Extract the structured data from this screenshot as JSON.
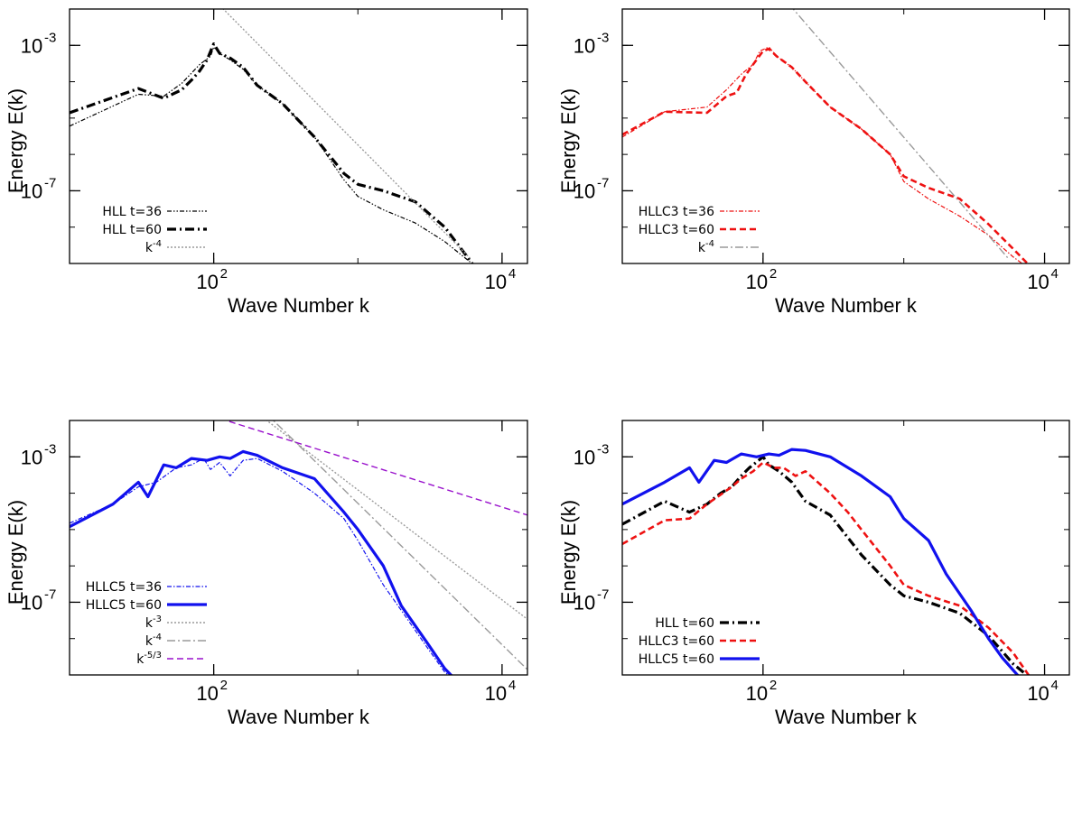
{
  "chart_data": [
    {
      "type": "line",
      "xscale": "log",
      "yscale": "log",
      "xlim": [
        10,
        15000
      ],
      "ylim": [
        1e-09,
        0.01
      ],
      "xlabel": "Wave Number k",
      "ylabel": "Energy E(k)",
      "xticks": [
        {
          "value": 100,
          "label": "10",
          "exp": "2"
        },
        {
          "value": 10000,
          "label": "10",
          "exp": "4"
        }
      ],
      "yticks": [
        {
          "value": 0.001,
          "label": "10",
          "exp": "-3"
        },
        {
          "value": 1e-07,
          "label": "10",
          "exp": "-7"
        }
      ],
      "legend_position": "bottom-left",
      "series": [
        {
          "name": "HLL t=36",
          "color": "#000000",
          "width": 1.2,
          "dash": "5,2,1.5,2,1.5,2",
          "points": [
            [
              10,
              6e-06
            ],
            [
              30,
              4.5e-05
            ],
            [
              45,
              4e-05
            ],
            [
              60,
              9e-05
            ],
            [
              80,
              0.0003
            ],
            [
              95,
              0.0005
            ],
            [
              100,
              0.0009
            ],
            [
              110,
              0.0006
            ],
            [
              130,
              0.0004
            ],
            [
              160,
              0.00022
            ],
            [
              200,
              8e-05
            ],
            [
              300,
              2.5e-05
            ],
            [
              500,
              3e-06
            ],
            [
              800,
              2e-07
            ],
            [
              1000,
              7e-08
            ],
            [
              1500,
              3e-08
            ],
            [
              2500,
              1.3e-08
            ],
            [
              4000,
              4e-09
            ],
            [
              6000,
              1.1e-09
            ]
          ]
        },
        {
          "name": "HLL t=60",
          "color": "#000000",
          "width": 3.2,
          "dash": "10,4,2,4",
          "points": [
            [
              10,
              1.4e-05
            ],
            [
              30,
              6.5e-05
            ],
            [
              45,
              3.5e-05
            ],
            [
              60,
              6e-05
            ],
            [
              70,
              0.00011
            ],
            [
              80,
              0.0002
            ],
            [
              90,
              0.0004
            ],
            [
              100,
              0.0011
            ],
            [
              110,
              0.0006
            ],
            [
              130,
              0.00045
            ],
            [
              160,
              0.00025
            ],
            [
              200,
              8e-05
            ],
            [
              300,
              2.5e-05
            ],
            [
              500,
              3e-06
            ],
            [
              800,
              3e-07
            ],
            [
              1000,
              1.5e-07
            ],
            [
              1500,
              1e-07
            ],
            [
              2500,
              5e-08
            ],
            [
              4000,
              1e-08
            ],
            [
              6000,
              1.2e-09
            ],
            [
              7000,
              5e-10
            ]
          ]
        },
        {
          "name": "k",
          "sup": "-4",
          "color": "#9a9a9a",
          "width": 1.4,
          "dash": "2,2",
          "points": [
            [
              80,
              0.045
            ],
            [
              6000,
              1.4e-09
            ]
          ]
        }
      ]
    },
    {
      "type": "line",
      "xscale": "log",
      "yscale": "log",
      "xlim": [
        10,
        15000
      ],
      "ylim": [
        1e-09,
        0.01
      ],
      "xlabel": "Wave Number k",
      "ylabel": "Energy E(k)",
      "xticks": [
        {
          "value": 100,
          "label": "10",
          "exp": "2"
        },
        {
          "value": 10000,
          "label": "10",
          "exp": "4"
        }
      ],
      "yticks": [
        {
          "value": 0.001,
          "label": "10",
          "exp": "-3"
        },
        {
          "value": 1e-07,
          "label": "10",
          "exp": "-7"
        }
      ],
      "legend_position": "bottom-left",
      "series": [
        {
          "name": "HLLC3 t=36",
          "color": "#ee1111",
          "width": 1.2,
          "dash": "5,2,1.5,2",
          "points": [
            [
              10,
              3e-06
            ],
            [
              20,
              1.5e-05
            ],
            [
              40,
              2e-05
            ],
            [
              55,
              6e-05
            ],
            [
              70,
              0.00016
            ],
            [
              85,
              0.0003
            ],
            [
              95,
              0.0007
            ],
            [
              110,
              0.0009
            ],
            [
              125,
              0.0005
            ],
            [
              160,
              0.00025
            ],
            [
              200,
              0.0001
            ],
            [
              300,
              2e-05
            ],
            [
              500,
              5e-06
            ],
            [
              800,
              1e-06
            ],
            [
              1000,
              1.8e-07
            ],
            [
              1500,
              6e-08
            ],
            [
              2500,
              2e-08
            ],
            [
              4000,
              6e-09
            ],
            [
              6000,
              1.5e-09
            ],
            [
              7500,
              8e-10
            ]
          ]
        },
        {
          "name": "HLLC3 t=60",
          "color": "#ee1111",
          "width": 2.6,
          "dash": "7,4",
          "points": [
            [
              10,
              3.5e-06
            ],
            [
              20,
              1.5e-05
            ],
            [
              40,
              1.4e-05
            ],
            [
              55,
              4e-05
            ],
            [
              65,
              5e-05
            ],
            [
              75,
              0.00015
            ],
            [
              85,
              0.0003
            ],
            [
              100,
              0.0007
            ],
            [
              110,
              0.0008
            ],
            [
              125,
              0.0005
            ],
            [
              160,
              0.00025
            ],
            [
              200,
              0.0001
            ],
            [
              300,
              2e-05
            ],
            [
              500,
              5e-06
            ],
            [
              800,
              1e-06
            ],
            [
              1000,
              2.5e-07
            ],
            [
              1500,
              1.2e-07
            ],
            [
              2500,
              6e-08
            ],
            [
              4000,
              1.2e-08
            ],
            [
              6000,
              2.5e-09
            ],
            [
              8000,
              8e-10
            ]
          ]
        },
        {
          "name": "k",
          "sup": "-4",
          "color": "#9a9a9a",
          "width": 1.4,
          "dash": "9,3,2,3",
          "points": [
            [
              110,
              0.06
            ],
            [
              5500,
              1.4e-09
            ]
          ]
        }
      ]
    },
    {
      "type": "line",
      "xscale": "log",
      "yscale": "log",
      "xlim": [
        10,
        15000
      ],
      "ylim": [
        1e-09,
        0.01
      ],
      "xlabel": "Wave Number k",
      "ylabel": "Energy E(k)",
      "xticks": [
        {
          "value": 100,
          "label": "10",
          "exp": "2"
        },
        {
          "value": 10000,
          "label": "10",
          "exp": "4"
        }
      ],
      "yticks": [
        {
          "value": 0.001,
          "label": "10",
          "exp": "-3"
        },
        {
          "value": 1e-07,
          "label": "10",
          "exp": "-7"
        }
      ],
      "legend_position": "bottom-left",
      "series": [
        {
          "name": "HLLC5 t=36",
          "color": "#1111ee",
          "width": 1.2,
          "dash": "5,2,1.5,2",
          "points": [
            [
              10,
              1.5e-05
            ],
            [
              20,
              5e-05
            ],
            [
              30,
              0.00015
            ],
            [
              40,
              0.0002
            ],
            [
              55,
              0.0005
            ],
            [
              70,
              0.0006
            ],
            [
              85,
              0.0009
            ],
            [
              95,
              0.00045
            ],
            [
              110,
              0.0007
            ],
            [
              130,
              0.0003
            ],
            [
              160,
              0.0008
            ],
            [
              200,
              0.0009
            ],
            [
              300,
              0.0004
            ],
            [
              500,
              0.0001
            ],
            [
              800,
              2e-05
            ],
            [
              1000,
              5e-06
            ],
            [
              1500,
              3e-07
            ],
            [
              2000,
              6e-08
            ],
            [
              3000,
              6e-09
            ],
            [
              4000,
              1.2e-09
            ],
            [
              5000,
              6e-10
            ]
          ]
        },
        {
          "name": "HLLC5 t=60",
          "color": "#1111ee",
          "width": 3.2,
          "dash": "",
          "points": [
            [
              10,
              1.2e-05
            ],
            [
              20,
              5e-05
            ],
            [
              30,
              0.0002
            ],
            [
              35,
              8e-05
            ],
            [
              45,
              0.0006
            ],
            [
              55,
              0.0005
            ],
            [
              70,
              0.0009
            ],
            [
              90,
              0.0008
            ],
            [
              110,
              0.001
            ],
            [
              130,
              0.0009
            ],
            [
              160,
              0.0014
            ],
            [
              200,
              0.0011
            ],
            [
              300,
              0.0005
            ],
            [
              500,
              0.00025
            ],
            [
              800,
              3e-05
            ],
            [
              1000,
              1e-05
            ],
            [
              1500,
              1e-06
            ],
            [
              2000,
              8e-08
            ],
            [
              3000,
              8e-09
            ],
            [
              4000,
              1.5e-09
            ],
            [
              5000,
              6e-10
            ]
          ]
        },
        {
          "name": "k",
          "sup": "-3",
          "color": "#9a9a9a",
          "width": 1.4,
          "dash": "2,2",
          "points": [
            [
              200,
              0.016
            ],
            [
              15000,
              3.4e-08
            ]
          ]
        },
        {
          "name": "k",
          "sup": "-4",
          "color": "#9a9a9a",
          "width": 1.4,
          "dash": "9,3,2,3",
          "points": [
            [
              230,
              0.016
            ],
            [
              15000,
              1.4e-09
            ]
          ]
        },
        {
          "name": "k",
          "sup": "-5/3",
          "color": "#9911cc",
          "width": 1.4,
          "dash": "7,4",
          "points": [
            [
              70,
              0.02
            ],
            [
              15000,
              2.5e-05
            ]
          ]
        }
      ]
    },
    {
      "type": "line",
      "xscale": "log",
      "yscale": "log",
      "xlim": [
        10,
        15000
      ],
      "ylim": [
        1e-09,
        0.01
      ],
      "xlabel": "Wave Number k",
      "ylabel": "Energy E(k)",
      "xticks": [
        {
          "value": 100,
          "label": "10",
          "exp": "2"
        },
        {
          "value": 10000,
          "label": "10",
          "exp": "4"
        }
      ],
      "yticks": [
        {
          "value": 0.001,
          "label": "10",
          "exp": "-3"
        },
        {
          "value": 1e-07,
          "label": "10",
          "exp": "-7"
        }
      ],
      "legend_position": "bottom-left",
      "series": [
        {
          "name": "HLL t=60",
          "color": "#000000",
          "width": 3.2,
          "dash": "10,4,2,4",
          "points": [
            [
              10,
              1.4e-05
            ],
            [
              20,
              6e-05
            ],
            [
              30,
              3e-05
            ],
            [
              40,
              5e-05
            ],
            [
              50,
              0.0001
            ],
            [
              60,
              0.00015
            ],
            [
              70,
              0.0003
            ],
            [
              80,
              0.0005
            ],
            [
              100,
              0.001
            ],
            [
              110,
              0.0006
            ],
            [
              130,
              0.0004
            ],
            [
              160,
              0.0002
            ],
            [
              200,
              6e-05
            ],
            [
              300,
              2.5e-05
            ],
            [
              500,
              2e-06
            ],
            [
              800,
              3e-07
            ],
            [
              1000,
              1.5e-07
            ],
            [
              1500,
              1e-07
            ],
            [
              2500,
              5e-08
            ],
            [
              4000,
              1.2e-08
            ],
            [
              6000,
              2e-09
            ],
            [
              8000,
              8e-10
            ]
          ]
        },
        {
          "name": "HLLC3 t=60",
          "color": "#ee1111",
          "width": 2.6,
          "dash": "7,4",
          "points": [
            [
              10,
              4e-06
            ],
            [
              20,
              1.8e-05
            ],
            [
              30,
              2e-05
            ],
            [
              40,
              5e-05
            ],
            [
              60,
              0.00015
            ],
            [
              70,
              0.00025
            ],
            [
              85,
              0.0004
            ],
            [
              100,
              0.0007
            ],
            [
              120,
              0.0005
            ],
            [
              140,
              0.0005
            ],
            [
              170,
              0.0003
            ],
            [
              200,
              0.0004
            ],
            [
              300,
              0.0001
            ],
            [
              400,
              3e-05
            ],
            [
              500,
              1e-05
            ],
            [
              800,
              1e-06
            ],
            [
              1000,
              3e-07
            ],
            [
              1500,
              1.5e-07
            ],
            [
              2500,
              8e-08
            ],
            [
              4000,
              2e-08
            ],
            [
              6000,
              4e-09
            ],
            [
              8000,
              8e-10
            ]
          ]
        },
        {
          "name": "HLLC5 t=60",
          "color": "#1111ee",
          "width": 3.2,
          "dash": "",
          "points": [
            [
              10,
              5e-05
            ],
            [
              20,
              0.0002
            ],
            [
              30,
              0.0005
            ],
            [
              35,
              0.0002
            ],
            [
              45,
              0.0008
            ],
            [
              55,
              0.0007
            ],
            [
              70,
              0.0012
            ],
            [
              90,
              0.001
            ],
            [
              110,
              0.0012
            ],
            [
              130,
              0.0011
            ],
            [
              160,
              0.0016
            ],
            [
              200,
              0.0015
            ],
            [
              300,
              0.001
            ],
            [
              500,
              0.0003
            ],
            [
              800,
              8e-05
            ],
            [
              1000,
              2e-05
            ],
            [
              1500,
              5e-06
            ],
            [
              2000,
              6e-07
            ],
            [
              3000,
              6e-08
            ],
            [
              4000,
              1e-08
            ],
            [
              5000,
              3e-09
            ],
            [
              7500,
              5e-10
            ]
          ]
        }
      ]
    }
  ]
}
